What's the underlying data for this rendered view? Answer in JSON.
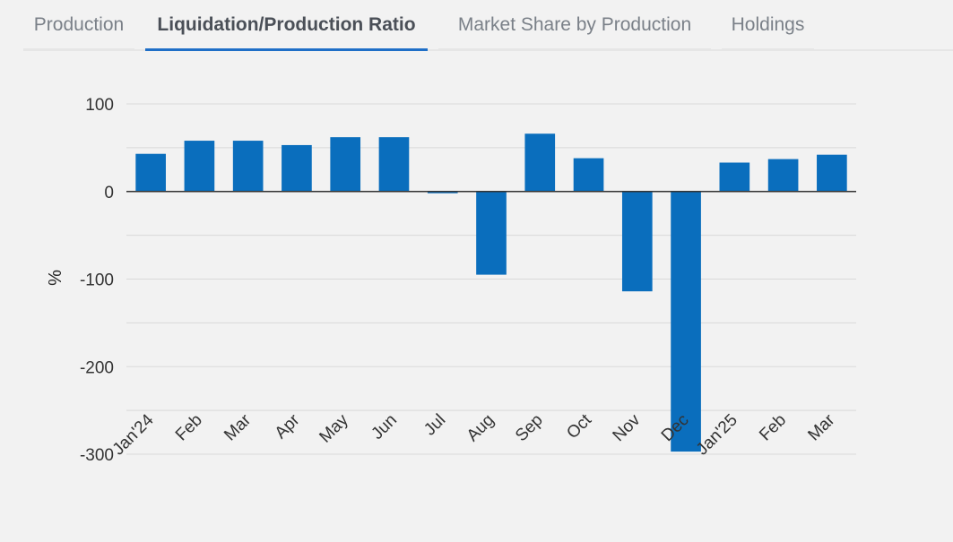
{
  "tabs": [
    {
      "label": "Production",
      "active": false
    },
    {
      "label": "Liquidation/Production Ratio",
      "active": true
    },
    {
      "label": "Market Share by Production",
      "active": false
    },
    {
      "label": "Holdings",
      "active": false
    }
  ],
  "colors": {
    "bar": "#0a6ebd",
    "accent": "#1f6fc7",
    "grid": "#d9d9d9",
    "zero_line": "#333333"
  },
  "chart_data": {
    "type": "bar",
    "title": "",
    "xlabel": "",
    "ylabel": "%",
    "ylim": [
      -300,
      100
    ],
    "yticks": [
      100,
      0,
      -100,
      -200,
      -300
    ],
    "grid": true,
    "categories": [
      "Jan'24",
      "Feb",
      "Mar",
      "Apr",
      "May",
      "Jun",
      "Jul",
      "Aug",
      "Sep",
      "Oct",
      "Nov",
      "Dec",
      "Jan'25",
      "Feb",
      "Mar"
    ],
    "values": [
      43,
      58,
      58,
      53,
      62,
      62,
      -2,
      -95,
      66,
      38,
      -114,
      -297,
      33,
      37,
      42
    ]
  }
}
